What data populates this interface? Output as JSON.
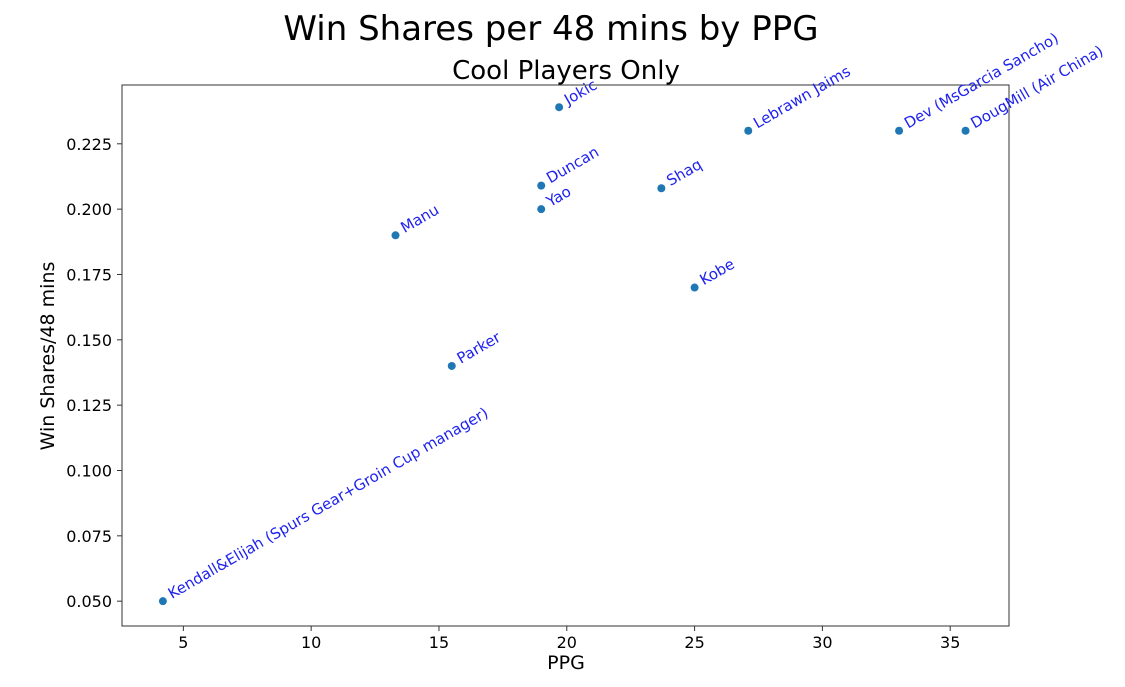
{
  "chart_data": {
    "type": "scatter",
    "title": "Win Shares per 48 mins by PPG",
    "subtitle": "Cool Players Only",
    "xlabel": "PPG",
    "ylabel": "Win Shares/48 mins",
    "xlim": [
      2.6,
      37.3
    ],
    "ylim": [
      0.0405,
      0.2475
    ],
    "xticks": [
      5,
      10,
      15,
      20,
      25,
      30,
      35
    ],
    "yticks": [
      0.05,
      0.075,
      0.1,
      0.125,
      0.15,
      0.175,
      0.2,
      0.225
    ],
    "ytick_labels": [
      "0.050",
      "0.075",
      "0.100",
      "0.125",
      "0.150",
      "0.175",
      "0.200",
      "0.225"
    ],
    "grid": false,
    "point_color": "#1f77b4",
    "label_color": "#1e22ee",
    "label_rotation_deg": 30,
    "points": [
      {
        "label": "Kendall&Elijah (Spurs Gear+Groin Cup manager)",
        "x": 4.2,
        "y": 0.05
      },
      {
        "label": "Manu",
        "x": 13.3,
        "y": 0.19
      },
      {
        "label": "Parker",
        "x": 15.5,
        "y": 0.14
      },
      {
        "label": "Duncan",
        "x": 19.0,
        "y": 0.209
      },
      {
        "label": "Yao",
        "x": 19.0,
        "y": 0.2
      },
      {
        "label": "Jokic",
        "x": 19.7,
        "y": 0.239
      },
      {
        "label": "Shaq",
        "x": 23.7,
        "y": 0.208
      },
      {
        "label": "Kobe",
        "x": 25.0,
        "y": 0.17
      },
      {
        "label": "Lebrawn Jaims",
        "x": 27.1,
        "y": 0.23
      },
      {
        "label": "Dev (MsGarcia Sancho)",
        "x": 33.0,
        "y": 0.23
      },
      {
        "label": "DougMill (Air China)",
        "x": 35.6,
        "y": 0.23
      }
    ]
  }
}
